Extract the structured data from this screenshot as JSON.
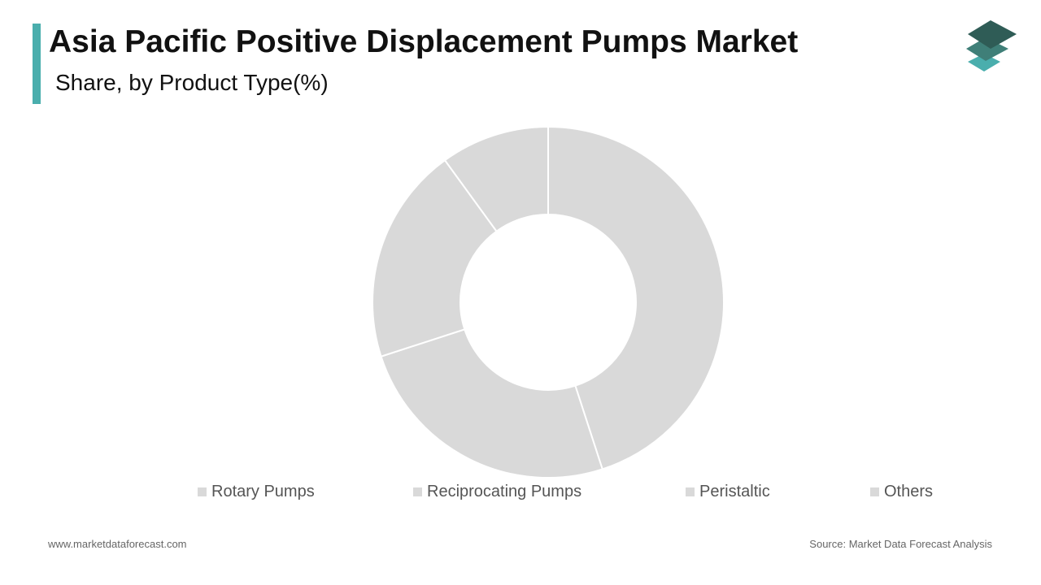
{
  "chart_data": {
    "type": "donut",
    "title": "Asia Pacific Positive Displacement Pumps Market",
    "subtitle": "Share, by Product Type(%)",
    "categories": [
      "Rotary Pumps",
      "Reciprocating Pumps",
      "Peristaltic",
      "Others"
    ],
    "values": [
      45,
      25,
      20,
      10
    ],
    "colors": [
      "#d9d9d9",
      "#d9d9d9",
      "#d9d9d9",
      "#d9d9d9"
    ],
    "legend": "bottom"
  },
  "footer": {
    "website": "www.marketdataforecast.com",
    "source": "Source: Market Data Forecast Analysis"
  }
}
